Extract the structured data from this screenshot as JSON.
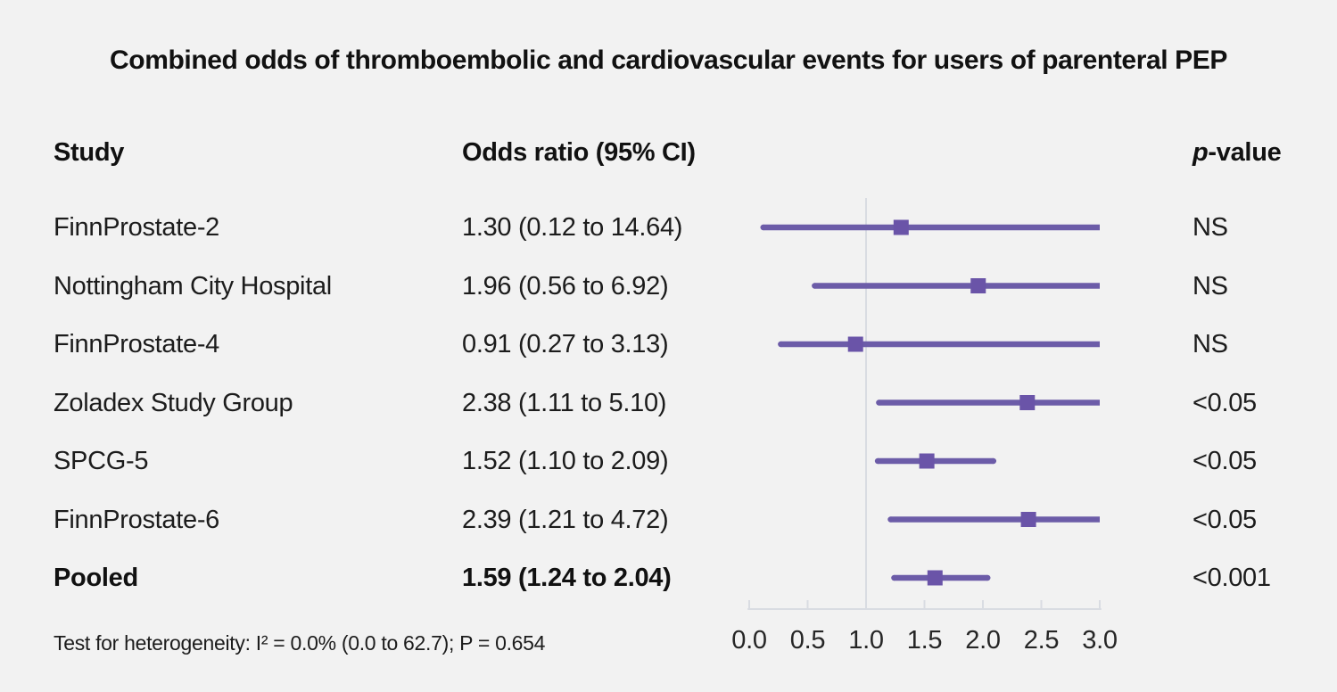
{
  "chart_data": {
    "type": "forest",
    "title": "Combined odds of thromboembolic and cardiovascular events for users of parenteral PEP",
    "columns": {
      "study": "Study",
      "odds_ratio": "Odds ratio (95% CI)",
      "p_value_italic": "p",
      "p_value_rest": "-value"
    },
    "rows": [
      {
        "study": "FinnProstate-2",
        "or_text": "1.30 (0.12 to 14.64)",
        "or": 1.3,
        "ci_low": 0.12,
        "ci_high": 14.64,
        "p": "NS",
        "bold": false
      },
      {
        "study": "Nottingham City Hospital",
        "or_text": "1.96 (0.56 to 6.92)",
        "or": 1.96,
        "ci_low": 0.56,
        "ci_high": 6.92,
        "p": "NS",
        "bold": false
      },
      {
        "study": "FinnProstate-4",
        "or_text": "0.91 (0.27 to 3.13)",
        "or": 0.91,
        "ci_low": 0.27,
        "ci_high": 3.13,
        "p": "NS",
        "bold": false
      },
      {
        "study": "Zoladex Study Group",
        "or_text": "2.38 (1.11 to 5.10)",
        "or": 2.38,
        "ci_low": 1.11,
        "ci_high": 5.1,
        "p": "<0.05",
        "bold": false
      },
      {
        "study": "SPCG-5",
        "or_text": "1.52 (1.10 to 2.09)",
        "or": 1.52,
        "ci_low": 1.1,
        "ci_high": 2.09,
        "p": "<0.05",
        "bold": false
      },
      {
        "study": "FinnProstate-6",
        "or_text": "2.39 (1.21 to 4.72)",
        "or": 2.39,
        "ci_low": 1.21,
        "ci_high": 4.72,
        "p": "<0.05",
        "bold": false
      },
      {
        "study": "Pooled",
        "or_text": "1.59 (1.24 to 2.04)",
        "or": 1.59,
        "ci_low": 1.24,
        "ci_high": 2.04,
        "p": "<0.001",
        "bold": true
      }
    ],
    "axis": {
      "xlim": [
        0,
        3
      ],
      "reference_line": 1.0,
      "ticks": [
        0.0,
        0.5,
        1.0,
        1.5,
        2.0,
        2.5,
        3.0
      ],
      "tick_labels": [
        "0.0",
        "0.5",
        "1.0",
        "1.5",
        "2.0",
        "2.5",
        "3.0"
      ]
    },
    "footnote": "Test for heterogeneity: I² = 0.0% (0.0 to 62.7); P = 0.654",
    "colors": {
      "marker": "#6a54a8",
      "ci_line": "#6c5ca8",
      "axis": "#d9dce2",
      "background": "#f2f2f2",
      "text": "#1c1c1c"
    }
  }
}
